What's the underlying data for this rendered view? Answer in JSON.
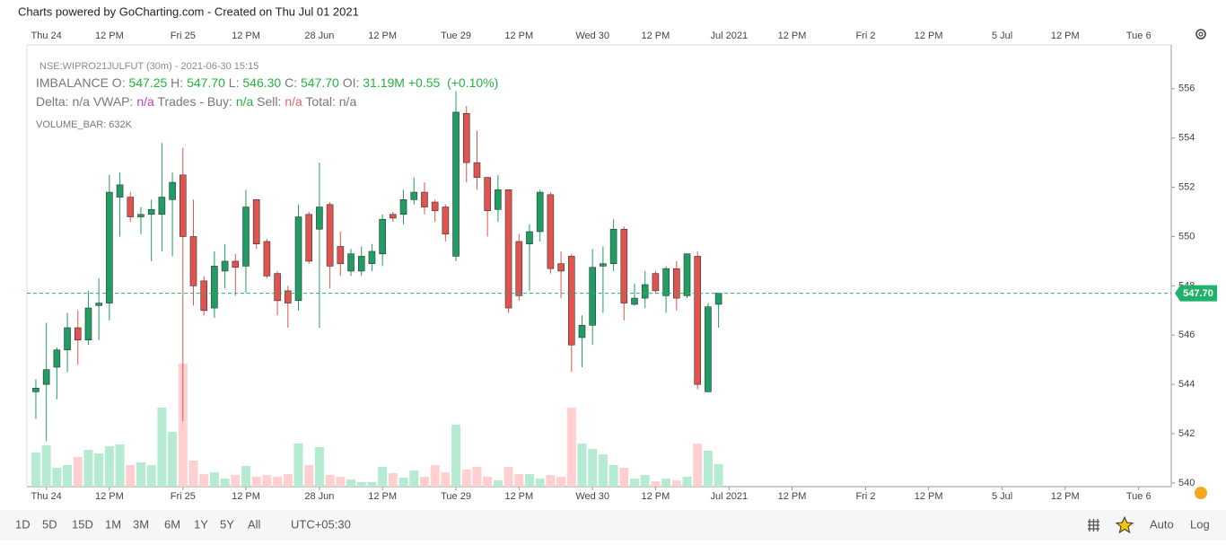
{
  "header": "Charts powered by GoCharting.com - Created on Thu Jul 01 2021",
  "chart_data": {
    "type": "candlestick",
    "x": [
      0,
      1,
      2,
      3,
      4,
      5,
      6,
      7,
      8,
      9,
      10,
      11,
      12,
      13,
      14,
      15,
      16,
      17,
      18,
      19,
      20,
      21,
      22,
      23,
      24,
      25,
      26,
      27,
      28,
      29,
      30,
      31,
      32,
      33,
      34,
      35,
      36,
      37,
      38,
      39,
      40,
      41,
      42,
      43,
      44,
      45,
      46,
      47,
      48,
      49,
      50,
      51,
      52,
      53,
      54,
      55,
      56,
      57,
      58,
      59,
      60,
      61,
      62,
      63,
      64,
      65
    ],
    "open": [
      543.7,
      544.0,
      544.7,
      545.4,
      546.3,
      545.8,
      547.2,
      547.3,
      551.6,
      551.6,
      550.8,
      550.9,
      550.9,
      551.5,
      552.5,
      550.0,
      548.2,
      547.1,
      548.6,
      549.0,
      548.8,
      551.5,
      549.8,
      548.5,
      547.8,
      547.4,
      550.9,
      550.3,
      551.3,
      549.6,
      548.6,
      548.6,
      548.9,
      549.3,
      550.9,
      550.9,
      551.5,
      551.8,
      551.4,
      551.2,
      549.2,
      555.0,
      553.0,
      552.4,
      551.1,
      551.9,
      549.8,
      549.7,
      550.2,
      551.7,
      548.9,
      549.2,
      545.9,
      546.4,
      548.8,
      548.9,
      550.3,
      547.25,
      547.5,
      548.5,
      547.6,
      548.7,
      547.6,
      549.2,
      543.7,
      547.25
    ],
    "high": [
      544.2,
      546.5,
      545.5,
      546.9,
      547.0,
      547.8,
      548.3,
      552.5,
      552.6,
      551.8,
      551.2,
      551.5,
      553.8,
      552.6,
      553.6,
      551.5,
      548.4,
      549.4,
      549.7,
      549.3,
      551.9,
      551.5,
      549.9,
      548.6,
      548.0,
      551.3,
      551.0,
      553.0,
      551.4,
      550.2,
      549.5,
      549.6,
      549.7,
      550.9,
      551.0,
      551.9,
      552.4,
      552.2,
      551.5,
      551.3,
      555.9,
      555.3,
      554.3,
      552.4,
      552.5,
      551.9,
      550.1,
      550.5,
      551.9,
      551.8,
      549.4,
      549.3,
      546.8,
      549.5,
      549.6,
      550.7,
      550.4,
      548.1,
      548.6,
      548.6,
      548.8,
      549.0,
      549.3,
      549.4,
      547.3,
      547.7
    ],
    "low": [
      542.6,
      541.7,
      543.4,
      544.5,
      544.8,
      545.6,
      545.8,
      546.6,
      550.0,
      550.6,
      550.1,
      549.0,
      549.4,
      549.2,
      542.5,
      547.2,
      546.8,
      546.7,
      547.9,
      547.6,
      547.7,
      549.5,
      548.3,
      546.8,
      546.3,
      547.0,
      548.9,
      546.3,
      547.9,
      548.4,
      548.4,
      548.4,
      548.6,
      548.8,
      550.6,
      550.5,
      551.3,
      550.9,
      550.6,
      549.8,
      549.0,
      552.2,
      551.9,
      550.0,
      550.6,
      546.9,
      547.4,
      547.8,
      549.8,
      548.5,
      547.5,
      544.5,
      544.7,
      545.6,
      546.9,
      548.6,
      546.6,
      547.2,
      547.1,
      547.7,
      546.9,
      547.0,
      547.5,
      543.8,
      543.7,
      546.3
    ],
    "close": [
      543.85,
      544.6,
      545.4,
      546.3,
      545.8,
      547.1,
      547.3,
      551.8,
      552.1,
      550.8,
      550.9,
      551.1,
      551.6,
      552.2,
      550.0,
      548.0,
      547.0,
      548.8,
      549.0,
      548.75,
      551.2,
      549.7,
      548.4,
      547.4,
      547.3,
      550.8,
      549.0,
      551.2,
      548.8,
      548.9,
      549.3,
      549.2,
      549.4,
      550.7,
      550.75,
      551.5,
      551.8,
      551.2,
      551.05,
      550.1,
      555.05,
      553.0,
      552.4,
      551.05,
      551.9,
      547.1,
      547.6,
      550.2,
      551.8,
      548.7,
      548.6,
      545.6,
      546.4,
      548.75,
      548.9,
      550.3,
      547.3,
      547.5,
      548.05,
      547.8,
      548.7,
      547.5,
      549.3,
      544.0,
      547.15,
      547.7
    ],
    "volume": [
      961000,
      1164000,
      531000,
      607000,
      835000,
      1037000,
      936000,
      1139000,
      1189000,
      607000,
      683000,
      607000,
      2226000,
      1543000,
      3466000,
      734000,
      354000,
      405000,
      228000,
      329000,
      582000,
      278000,
      329000,
      278000,
      354000,
      1214000,
      607000,
      1113000,
      329000,
      278000,
      202000,
      127000,
      127000,
      557000,
      380000,
      253000,
      455000,
      278000,
      607000,
      405000,
      1746000,
      481000,
      557000,
      278000,
      177000,
      557000,
      354000,
      354000,
      228000,
      329000,
      278000,
      2226000,
      1214000,
      1063000,
      911000,
      607000,
      531000,
      228000,
      329000,
      152000,
      228000,
      177000,
      278000,
      1214000,
      1012000,
      632000
    ],
    "volume_lim": [
      0,
      12450000
    ],
    "up_color": "#1f9d63",
    "down_color": "#e0544f",
    "up_volume_color": "#b5ebd2",
    "down_volume_color": "#ffd0cf",
    "xlim": [
      -0.85,
      108.1
    ],
    "xticks": [
      {
        "value": 1,
        "label": "Thu 24"
      },
      {
        "value": 7,
        "label": "12 PM"
      },
      {
        "value": 14,
        "label": "Fri 25"
      },
      {
        "value": 20,
        "label": "12 PM"
      },
      {
        "value": 27,
        "label": "28 Jun"
      },
      {
        "value": 33,
        "label": "12 PM"
      },
      {
        "value": 40,
        "label": "Tue 29"
      },
      {
        "value": 46,
        "label": "12 PM"
      },
      {
        "value": 53,
        "label": "Wed 30"
      },
      {
        "value": 59,
        "label": "12 PM"
      },
      {
        "value": 66,
        "label": "Jul 2021"
      },
      {
        "value": 72,
        "label": "12 PM"
      },
      {
        "value": 79,
        "label": "Fri 2"
      },
      {
        "value": 85,
        "label": "12 PM"
      },
      {
        "value": 92,
        "label": "5 Jul"
      },
      {
        "value": 98,
        "label": "12 PM"
      },
      {
        "value": 105,
        "label": "Tue 6"
      }
    ],
    "ylim": [
      539.85,
      557.78
    ],
    "yticks": [
      540,
      542,
      544,
      546,
      548,
      550,
      552,
      554,
      556
    ],
    "last_price": 547.7,
    "last_price_label": "547.70",
    "last_price_color": "#20b26c",
    "legend": [
      [
        {
          "text": "NSE:WIPRO21JULFUT (30m) - 2021-06-30 15:15",
          "color": "#8a8a8a"
        }
      ],
      [
        {
          "text": "IMBALANCE O: ",
          "color": "#777"
        },
        {
          "text": "547.25",
          "color": "#22b43c"
        },
        {
          "text": " H: ",
          "color": "#777"
        },
        {
          "text": "547.70",
          "color": "#22b43c"
        },
        {
          "text": " L: ",
          "color": "#777"
        },
        {
          "text": "546.30",
          "color": "#22b43c"
        },
        {
          "text": " C: ",
          "color": "#777"
        },
        {
          "text": "547.70",
          "color": "#22b43c"
        },
        {
          "text": " OI: ",
          "color": "#777"
        },
        {
          "text": "31.19M",
          "color": "#22b43c"
        },
        {
          "text": " +0.55  ",
          "color": "#22b43c"
        },
        {
          "text": "(+0.10%)",
          "color": "#22b43c"
        }
      ],
      [
        {
          "text": "Delta: n/a VWAP: ",
          "color": "#777"
        },
        {
          "text": "n/a",
          "color": "#c03fc0"
        },
        {
          "text": " Trades - Buy: ",
          "color": "#777"
        },
        {
          "text": "n/a",
          "color": "#22b43c"
        },
        {
          "text": " Sell: ",
          "color": "#777"
        },
        {
          "text": "n/a",
          "color": "#e56565"
        },
        {
          "text": " Total: n/a",
          "color": "#777"
        }
      ],
      [
        {
          "text": "VOLUME_BAR: 632K",
          "color": "#777"
        }
      ]
    ]
  },
  "toolbar": {
    "ranges": [
      "1D",
      "5D",
      "15D",
      "1M",
      "3M",
      "6M",
      "1Y",
      "5Y",
      "All"
    ],
    "timezone": "UTC+05:30",
    "scale_modes": [
      "Auto",
      "Log"
    ]
  }
}
